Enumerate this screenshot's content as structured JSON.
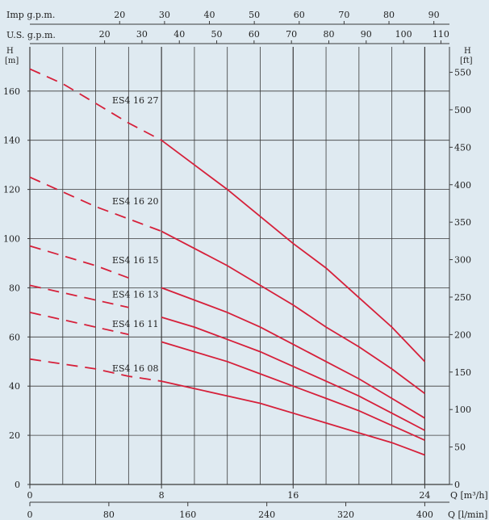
{
  "chart_data": {
    "type": "line",
    "colors": {
      "background": "#dfeaf1",
      "grid": "#3a3a3a",
      "series": "#d6203a"
    },
    "top_axes": [
      {
        "label": "Imp g.p.m.",
        "ticks": [
          "20",
          "30",
          "40",
          "50",
          "60",
          "70",
          "80",
          "90"
        ],
        "m3h_per_unit": 0.2728
      },
      {
        "label": "U.S. g.p.m.",
        "ticks": [
          "20",
          "30",
          "40",
          "50",
          "60",
          "70",
          "80",
          "90",
          "100",
          "110"
        ],
        "m3h_per_unit": 0.2271
      }
    ],
    "x_axis": {
      "label": "Q [m³/h]",
      "ticks": [
        "0",
        "8",
        "16",
        "24"
      ],
      "range": [
        0,
        25.5
      ]
    },
    "x_axis2": {
      "label": "Q [l/min]",
      "ticks": [
        "0",
        "80",
        "160",
        "240",
        "320",
        "400"
      ]
    },
    "y_axis": {
      "label_top": "H",
      "label_unit": "[m]",
      "ticks": [
        "0",
        "20",
        "40",
        "60",
        "80",
        "100",
        "120",
        "140",
        "160"
      ],
      "range": [
        0,
        178
      ]
    },
    "y_axis2": {
      "label_top": "H",
      "label_unit": "[ft]",
      "ticks": [
        "0",
        "50",
        "100",
        "150",
        "200",
        "250",
        "300",
        "350",
        "400",
        "450",
        "500",
        "550"
      ]
    },
    "grid": true,
    "series": [
      {
        "name": "ES4 16 27",
        "dash_until": 8,
        "label_at": [
          5,
          155
        ],
        "x": [
          0,
          2,
          4,
          6,
          8,
          10,
          12,
          14,
          16,
          18,
          20,
          22,
          24
        ],
        "y": [
          169,
          163,
          155,
          147,
          140,
          130,
          120,
          109,
          98,
          88,
          76,
          64,
          50
        ]
      },
      {
        "name": "ES4 16 20",
        "dash_until": 8,
        "label_at": [
          5,
          114
        ],
        "x": [
          0,
          2,
          4,
          6,
          8,
          10,
          12,
          14,
          16,
          18,
          20,
          22,
          24
        ],
        "y": [
          125,
          119,
          113,
          108,
          103,
          96,
          89,
          81,
          73,
          64,
          56,
          47,
          37
        ]
      },
      {
        "name": "ES4 16 15",
        "dash_until": 7,
        "label_at": [
          5,
          90
        ],
        "x": [
          0,
          2,
          4,
          6,
          8,
          10,
          12,
          14,
          16,
          18,
          20,
          22,
          24
        ],
        "y": [
          97,
          93,
          89,
          84,
          80,
          75,
          70,
          64,
          57,
          50,
          43,
          35,
          27
        ]
      },
      {
        "name": "ES4 16 13",
        "dash_until": 7,
        "label_at": [
          5,
          76
        ],
        "x": [
          0,
          2,
          4,
          6,
          8,
          10,
          12,
          14,
          16,
          18,
          20,
          22,
          24
        ],
        "y": [
          81,
          78,
          75,
          72,
          68,
          64,
          59,
          54,
          48,
          42,
          36,
          29,
          22
        ]
      },
      {
        "name": "ES4 16 11",
        "dash_until": 7,
        "label_at": [
          5,
          64
        ],
        "x": [
          0,
          2,
          4,
          6,
          8,
          10,
          12,
          14,
          16,
          18,
          20,
          22,
          24
        ],
        "y": [
          70,
          67,
          64,
          61,
          58,
          54,
          50,
          45,
          40,
          35,
          30,
          24,
          18
        ]
      },
      {
        "name": "ES4 16 08",
        "dash_until": 8,
        "label_at": [
          5,
          46
        ],
        "x": [
          0,
          2,
          4,
          6,
          8,
          10,
          12,
          14,
          16,
          18,
          20,
          22,
          24
        ],
        "y": [
          51,
          49,
          47,
          44,
          42,
          39,
          36,
          33,
          29,
          25,
          21,
          17,
          12
        ]
      }
    ]
  }
}
